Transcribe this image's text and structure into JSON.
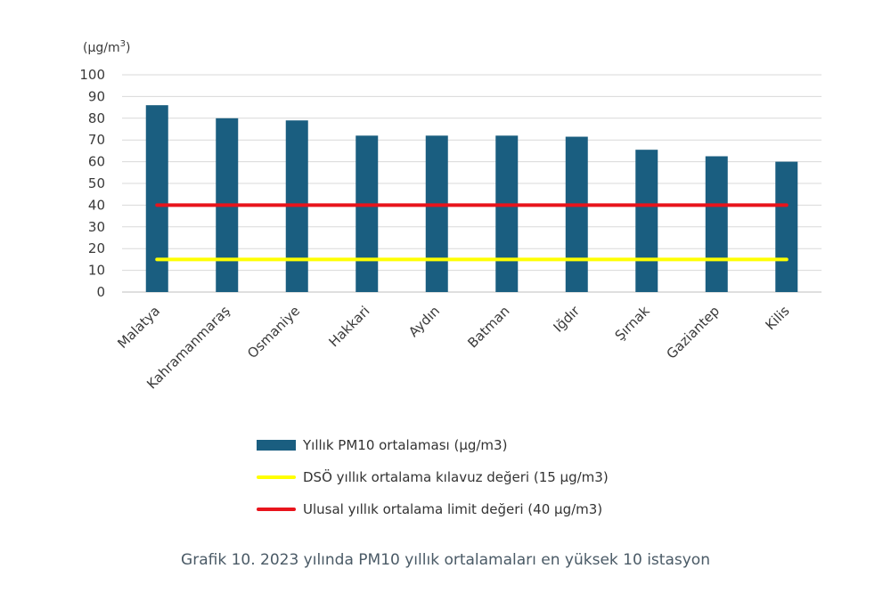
{
  "chart_data": {
    "type": "bar",
    "unit_label": "(µg/m",
    "unit_sup": "3",
    "unit_close": ")",
    "categories": [
      "Malatya",
      "Kahramanmaraş",
      "Osmaniye",
      "Hakkari",
      "Aydın",
      "Batman",
      "Iğdır",
      "Şırnak",
      "Gaziantep",
      "Kilis"
    ],
    "series": [
      {
        "name": "Yıllık  PM10 ortalaması (µg/m3)",
        "values": [
          86,
          80,
          79,
          72,
          72,
          72,
          71.5,
          65.5,
          62.5,
          60
        ],
        "color": "#1a5e80"
      }
    ],
    "reference_lines": [
      {
        "name": "DSÖ yıllık ortalama kılavuz değeri (15 µg/m3)",
        "value": 15,
        "color": "#ffff00"
      },
      {
        "name": "Ulusal yıllık ortalama limit değeri (40 µg/m3)",
        "value": 40,
        "color": "#e8141c"
      }
    ],
    "yticks": [
      0,
      10,
      20,
      30,
      40,
      50,
      60,
      70,
      80,
      90,
      100
    ],
    "ylim": [
      0,
      100
    ],
    "grid": true,
    "legend_position": "bottom",
    "title": ""
  },
  "caption": "Grafik 10. 2023 yılında PM10 yıllık ortalamaları en yüksek 10 istasyon"
}
